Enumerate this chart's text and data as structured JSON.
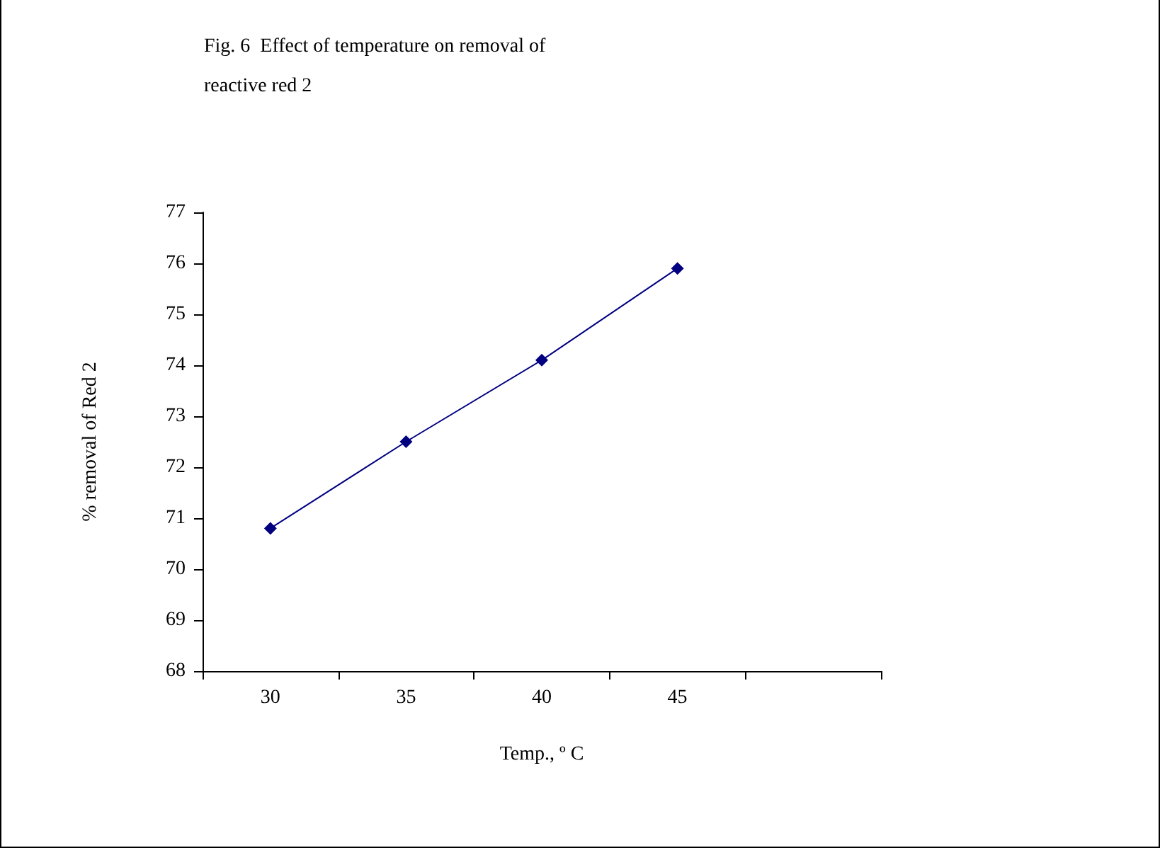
{
  "chart_data": {
    "type": "line",
    "title": "Fig. 6  Effect of temperature on removal of reactive red 2",
    "xlabel": "Temp., º C",
    "ylabel": "% removal of Red 2",
    "categories": [
      "30",
      "35",
      "40",
      "45",
      null
    ],
    "series": [
      {
        "color": "#000080",
        "values": [
          70.8,
          72.5,
          74.1,
          75.9,
          null
        ]
      }
    ],
    "ylim": [
      68,
      77
    ],
    "yticks": [
      68,
      69,
      70,
      71,
      72,
      73,
      74,
      75,
      76,
      77
    ],
    "grid": false,
    "marker": "diamond",
    "line_style": "solid"
  }
}
